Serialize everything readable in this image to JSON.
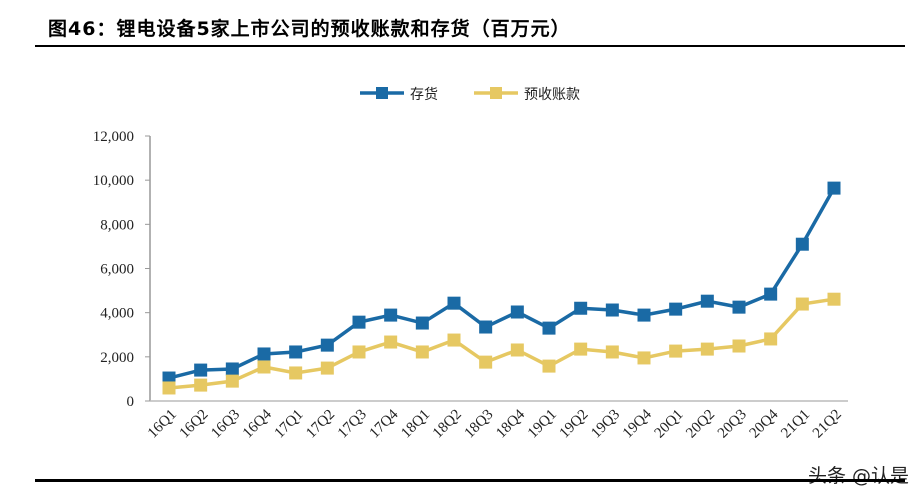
{
  "title": "图46：锂电设备5家上市公司的预收账款和存货（百万元）",
  "watermark": "头条 @认是",
  "chart_data": {
    "type": "line",
    "title": "",
    "xlabel": "",
    "ylabel": "",
    "ylim": [
      0,
      12000
    ],
    "yticks": [
      0,
      2000,
      4000,
      6000,
      8000,
      10000,
      12000
    ],
    "ytick_labels": [
      "0",
      "2,000",
      "4,000",
      "6,000",
      "8,000",
      "10,000",
      "12,000"
    ],
    "grid": false,
    "legend_position": "top-center",
    "categories": [
      "16Q1",
      "16Q2",
      "16Q3",
      "16Q4",
      "17Q1",
      "17Q2",
      "17Q3",
      "17Q4",
      "18Q1",
      "18Q2",
      "18Q3",
      "18Q4",
      "19Q1",
      "19Q2",
      "19Q3",
      "19Q4",
      "20Q1",
      "20Q2",
      "20Q3",
      "20Q4",
      "21Q1",
      "21Q2"
    ],
    "series": [
      {
        "name": "存货",
        "color": "#1a6aa5",
        "marker": "square",
        "values": [
          1040,
          1400,
          1450,
          2130,
          2220,
          2530,
          3570,
          3890,
          3530,
          4430,
          3350,
          4030,
          3300,
          4200,
          4120,
          3890,
          4160,
          4520,
          4250,
          4840,
          7100,
          9640
        ]
      },
      {
        "name": "预收账款",
        "color": "#e6c862",
        "marker": "square",
        "values": [
          590,
          720,
          900,
          1540,
          1270,
          1490,
          2220,
          2670,
          2220,
          2760,
          1760,
          2310,
          1580,
          2350,
          2220,
          1950,
          2260,
          2350,
          2490,
          2810,
          4390,
          4610
        ]
      }
    ]
  }
}
